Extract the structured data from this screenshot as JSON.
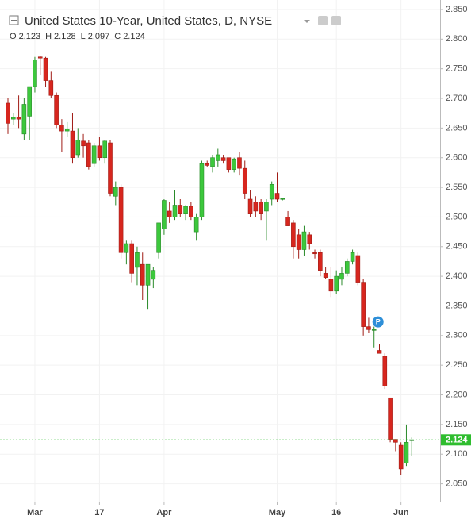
{
  "chart_data": {
    "type": "candlestick",
    "title": "United States 10-Year, United States, D, NYSE",
    "ohlc_keys": [
      "O",
      "H",
      "L",
      "C"
    ],
    "annotation": "P",
    "categories": [
      null,
      null,
      null,
      null,
      null,
      "Mar",
      null,
      null,
      null,
      null,
      null,
      null,
      null,
      null,
      null,
      null,
      null,
      "17",
      null,
      null,
      null,
      null,
      null,
      null,
      null,
      null,
      null,
      null,
      null,
      "Apr",
      null,
      null,
      null,
      null,
      null,
      null,
      null,
      null,
      null,
      null,
      null,
      null,
      null,
      null,
      null,
      null,
      null,
      null,
      null,
      null,
      "May",
      null,
      null,
      null,
      null,
      null,
      null,
      null,
      null,
      null,
      null,
      "16",
      null,
      null,
      null,
      null,
      null,
      null,
      null,
      null,
      null,
      null,
      null,
      "Jun",
      null,
      null
    ],
    "open": [
      2.692,
      2.665,
      2.668,
      2.64,
      2.67,
      2.72,
      2.77,
      2.768,
      2.73,
      2.705,
      2.655,
      2.645,
      2.645,
      2.605,
      2.628,
      2.625,
      2.59,
      2.62,
      2.6,
      2.625,
      2.535,
      2.55,
      2.44,
      2.455,
      2.415,
      2.42,
      2.385,
      2.395,
      2.44,
      2.48,
      2.51,
      2.5,
      2.52,
      2.505,
      2.518,
      2.475,
      2.5,
      2.59,
      2.585,
      2.595,
      2.6,
      2.6,
      2.58,
      2.6,
      2.582,
      2.53,
      2.525,
      2.525,
      2.51,
      2.53,
      2.54,
      2.53,
      2.5,
      2.49,
      2.47,
      2.445,
      2.47,
      2.44,
      2.44,
      2.405,
      2.395,
      2.375,
      2.395,
      2.405,
      2.425,
      2.435,
      2.39,
      2.315,
      2.31,
      2.275,
      2.265,
      2.195,
      2.125,
      2.115,
      2.085,
      2.123
    ],
    "high": [
      2.7,
      2.675,
      2.705,
      2.7,
      2.715,
      2.77,
      2.772,
      2.77,
      2.745,
      2.71,
      2.665,
      2.66,
      2.675,
      2.65,
      2.64,
      2.63,
      2.625,
      2.635,
      2.63,
      2.63,
      2.56,
      2.555,
      2.46,
      2.46,
      2.45,
      2.44,
      2.42,
      2.415,
      2.49,
      2.53,
      2.525,
      2.545,
      2.53,
      2.52,
      2.525,
      2.505,
      2.595,
      2.595,
      2.605,
      2.615,
      2.605,
      2.6,
      2.6,
      2.61,
      2.595,
      2.545,
      2.535,
      2.53,
      2.53,
      2.56,
      2.575,
      2.532,
      2.51,
      2.495,
      2.48,
      2.485,
      2.475,
      2.445,
      2.445,
      2.415,
      2.415,
      2.41,
      2.415,
      2.43,
      2.445,
      2.44,
      2.395,
      2.33,
      2.315,
      2.285,
      2.27,
      2.195,
      2.125,
      2.12,
      2.15,
      2.128
    ],
    "low": [
      2.64,
      2.655,
      2.65,
      2.63,
      2.63,
      2.71,
      2.74,
      2.72,
      2.7,
      2.65,
      2.61,
      2.635,
      2.59,
      2.6,
      2.6,
      2.58,
      2.585,
      2.595,
      2.59,
      2.535,
      2.52,
      2.43,
      2.42,
      2.39,
      2.385,
      2.36,
      2.345,
      2.38,
      2.43,
      2.47,
      2.49,
      2.495,
      2.5,
      2.495,
      2.495,
      2.46,
      2.495,
      2.585,
      2.575,
      2.585,
      2.59,
      2.575,
      2.575,
      2.57,
      2.53,
      2.5,
      2.5,
      2.495,
      2.46,
      2.52,
      2.525,
      2.528,
      2.485,
      2.43,
      2.43,
      2.435,
      2.445,
      2.43,
      2.4,
      2.395,
      2.365,
      2.37,
      2.385,
      2.4,
      2.42,
      2.385,
      2.3,
      2.305,
      2.28,
      2.27,
      2.21,
      2.12,
      2.105,
      2.065,
      2.08,
      2.097
    ],
    "close": [
      2.658,
      2.668,
      2.665,
      2.69,
      2.72,
      2.765,
      2.768,
      2.73,
      2.705,
      2.655,
      2.645,
      2.648,
      2.6,
      2.63,
      2.62,
      2.585,
      2.62,
      2.6,
      2.628,
      2.54,
      2.55,
      2.44,
      2.455,
      2.405,
      2.44,
      2.385,
      2.42,
      2.41,
      2.49,
      2.528,
      2.5,
      2.52,
      2.505,
      2.518,
      2.5,
      2.5,
      2.59,
      2.587,
      2.6,
      2.605,
      2.595,
      2.58,
      2.598,
      2.582,
      2.54,
      2.505,
      2.51,
      2.505,
      2.525,
      2.555,
      2.53,
      2.531,
      2.485,
      2.45,
      2.445,
      2.475,
      2.455,
      2.438,
      2.41,
      2.398,
      2.375,
      2.4,
      2.405,
      2.425,
      2.44,
      2.39,
      2.315,
      2.31,
      2.31,
      2.27,
      2.215,
      2.125,
      2.12,
      2.075,
      2.12,
      2.124
    ],
    "up_color": "#3cc83c",
    "down_color": "#d7261e",
    "last_price_color": "#2fbd2f",
    "ylim": [
      2.02,
      2.866
    ],
    "yticks": [
      {
        "value": 2.05,
        "label": "2.050"
      },
      {
        "value": 2.1,
        "label": "2.100"
      },
      {
        "value": 2.15,
        "label": "2.150"
      },
      {
        "value": 2.2,
        "label": "2.200"
      },
      {
        "value": 2.25,
        "label": "2.250"
      },
      {
        "value": 2.3,
        "label": "2.300"
      },
      {
        "value": 2.35,
        "label": "2.350"
      },
      {
        "value": 2.4,
        "label": "2.400"
      },
      {
        "value": 2.45,
        "label": "2.450"
      },
      {
        "value": 2.5,
        "label": "2.500"
      },
      {
        "value": 2.55,
        "label": "2.550"
      },
      {
        "value": 2.6,
        "label": "2.600"
      },
      {
        "value": 2.65,
        "label": "2.650"
      },
      {
        "value": 2.7,
        "label": "2.700"
      },
      {
        "value": 2.75,
        "label": "2.750"
      },
      {
        "value": 2.8,
        "label": "2.800"
      },
      {
        "value": 2.85,
        "label": "2.850"
      }
    ],
    "grid": true
  }
}
